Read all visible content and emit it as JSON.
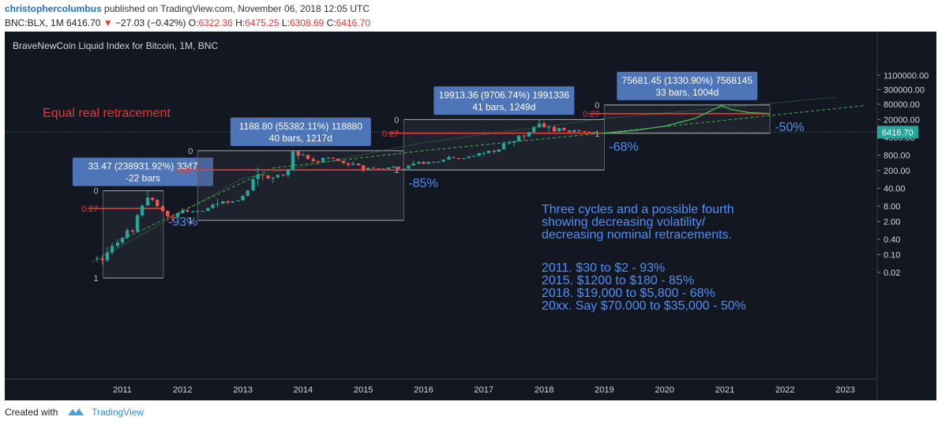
{
  "header": {
    "author": "christophercolumbus",
    "published_text": "published on TradingView.com, November 06, 2018 12:05 UTC",
    "symbol": "BNC:BLX, 1M",
    "last_price": "6416.70",
    "change": "−27.03 (−0.42%)",
    "open_label": "O:",
    "open_value": "6322.36",
    "high_label": "H:",
    "high_value": "6475.25",
    "low_label": "L:",
    "low_value": "6308.69",
    "close_label": "C:",
    "close_value": "6416.70"
  },
  "footer": {
    "created_with": "Created with",
    "brand": "TradingView"
  },
  "colors": {
    "background": "#131722",
    "up": "#26a69a",
    "down": "#ef5350",
    "red_line": "#e53935",
    "text_blue": "#4f8ff7",
    "box_fill": "#4e75b8",
    "grid": "#2a2e39",
    "green": "#4caf50"
  },
  "chart_data": {
    "type": "candlestick",
    "title": "BraveNewCoin Liquid Index for Bitcoin, 1M, BNC",
    "y_scale": "log",
    "x_tick_labels": [
      "2011",
      "2012",
      "2013",
      "2014",
      "2015",
      "2016",
      "2017",
      "2018",
      "2019",
      "2020",
      "2021",
      "2022",
      "2023"
    ],
    "y_tick_labels": [
      "1100000.00",
      "300000.00",
      "80000.00",
      "20000.00",
      "4000.00",
      "800.00",
      "200.00",
      "40.00",
      "8.00",
      "2.00",
      "0.40",
      "0.10",
      "0.02"
    ],
    "y_ticks": [
      1100000,
      300000,
      80000,
      20000,
      4000,
      800,
      200,
      40,
      8,
      2,
      0.4,
      0.1,
      0.02
    ],
    "price_label": "6416.70",
    "last_price": 6416.7,
    "candles": [
      {
        "t": 2010.58,
        "o": 0.07,
        "h": 0.09,
        "l": 0.05,
        "c": 0.07
      },
      {
        "t": 2010.67,
        "o": 0.07,
        "h": 0.1,
        "l": 0.04,
        "c": 0.06
      },
      {
        "t": 2010.75,
        "o": 0.06,
        "h": 0.2,
        "l": 0.05,
        "c": 0.12
      },
      {
        "t": 2010.83,
        "o": 0.12,
        "h": 0.3,
        "l": 0.1,
        "c": 0.22
      },
      {
        "t": 2010.92,
        "o": 0.22,
        "h": 0.4,
        "l": 0.17,
        "c": 0.3
      },
      {
        "t": 2011.0,
        "o": 0.3,
        "h": 0.5,
        "l": 0.25,
        "c": 0.45
      },
      {
        "t": 2011.08,
        "o": 0.45,
        "h": 1.1,
        "l": 0.4,
        "c": 0.9
      },
      {
        "t": 2011.17,
        "o": 0.9,
        "h": 0.95,
        "l": 0.7,
        "c": 0.8
      },
      {
        "t": 2011.25,
        "o": 0.8,
        "h": 4,
        "l": 0.7,
        "c": 3.5
      },
      {
        "t": 2011.33,
        "o": 3.5,
        "h": 9,
        "l": 3,
        "c": 8.5
      },
      {
        "t": 2011.42,
        "o": 8.5,
        "h": 31,
        "l": 8,
        "c": 17
      },
      {
        "t": 2011.5,
        "o": 17,
        "h": 18,
        "l": 12,
        "c": 14
      },
      {
        "t": 2011.58,
        "o": 14,
        "h": 15,
        "l": 7,
        "c": 8
      },
      {
        "t": 2011.67,
        "o": 8,
        "h": 9,
        "l": 4.5,
        "c": 5.2
      },
      {
        "t": 2011.75,
        "o": 5.2,
        "h": 5.5,
        "l": 2.2,
        "c": 3.2
      },
      {
        "t": 2011.83,
        "o": 3.2,
        "h": 3.6,
        "l": 2,
        "c": 3
      },
      {
        "t": 2011.92,
        "o": 3,
        "h": 4.5,
        "l": 2.8,
        "c": 4.2
      },
      {
        "t": 2012.0,
        "o": 4.2,
        "h": 7,
        "l": 4,
        "c": 5.5
      },
      {
        "t": 2012.08,
        "o": 5.5,
        "h": 6.2,
        "l": 4.3,
        "c": 4.9
      },
      {
        "t": 2012.17,
        "o": 4.9,
        "h": 5.5,
        "l": 4.6,
        "c": 4.9
      },
      {
        "t": 2012.25,
        "o": 4.9,
        "h": 5.3,
        "l": 4.7,
        "c": 5.1
      },
      {
        "t": 2012.33,
        "o": 5.1,
        "h": 5.3,
        "l": 4.9,
        "c": 5.2
      },
      {
        "t": 2012.42,
        "o": 5.2,
        "h": 6.8,
        "l": 5.1,
        "c": 6.7
      },
      {
        "t": 2012.5,
        "o": 6.7,
        "h": 9.5,
        "l": 6.5,
        "c": 9.4
      },
      {
        "t": 2012.58,
        "o": 9.4,
        "h": 16,
        "l": 7,
        "c": 10
      },
      {
        "t": 2012.67,
        "o": 10,
        "h": 12.5,
        "l": 9.8,
        "c": 12.4
      },
      {
        "t": 2012.75,
        "o": 12.4,
        "h": 13,
        "l": 9.6,
        "c": 11
      },
      {
        "t": 2012.83,
        "o": 11,
        "h": 12.6,
        "l": 10.5,
        "c": 12.5
      },
      {
        "t": 2012.92,
        "o": 12.5,
        "h": 13.7,
        "l": 12.1,
        "c": 13.5
      },
      {
        "t": 2013.0,
        "o": 13.5,
        "h": 21,
        "l": 13.2,
        "c": 20.4
      },
      {
        "t": 2013.08,
        "o": 20.4,
        "h": 35,
        "l": 19,
        "c": 33
      },
      {
        "t": 2013.17,
        "o": 33,
        "h": 95,
        "l": 31,
        "c": 93
      },
      {
        "t": 2013.25,
        "o": 93,
        "h": 266,
        "l": 50,
        "c": 140
      },
      {
        "t": 2013.33,
        "o": 140,
        "h": 140,
        "l": 80,
        "c": 129
      },
      {
        "t": 2013.42,
        "o": 129,
        "h": 130,
        "l": 95,
        "c": 97
      },
      {
        "t": 2013.5,
        "o": 97,
        "h": 110,
        "l": 65,
        "c": 106
      },
      {
        "t": 2013.58,
        "o": 106,
        "h": 140,
        "l": 102,
        "c": 135
      },
      {
        "t": 2013.67,
        "o": 135,
        "h": 145,
        "l": 118,
        "c": 133
      },
      {
        "t": 2013.75,
        "o": 133,
        "h": 215,
        "l": 105,
        "c": 210
      },
      {
        "t": 2013.83,
        "o": 210,
        "h": 1200,
        "l": 205,
        "c": 1130
      },
      {
        "t": 2013.92,
        "o": 1130,
        "h": 1180,
        "l": 520,
        "c": 770
      },
      {
        "t": 2014.0,
        "o": 770,
        "h": 1000,
        "l": 760,
        "c": 820
      },
      {
        "t": 2014.08,
        "o": 820,
        "h": 860,
        "l": 520,
        "c": 570
      },
      {
        "t": 2014.17,
        "o": 570,
        "h": 700,
        "l": 440,
        "c": 460
      },
      {
        "t": 2014.25,
        "o": 460,
        "h": 530,
        "l": 340,
        "c": 445
      },
      {
        "t": 2014.33,
        "o": 445,
        "h": 630,
        "l": 420,
        "c": 625
      },
      {
        "t": 2014.42,
        "o": 625,
        "h": 680,
        "l": 555,
        "c": 640
      },
      {
        "t": 2014.5,
        "o": 640,
        "h": 660,
        "l": 565,
        "c": 585
      },
      {
        "t": 2014.58,
        "o": 585,
        "h": 600,
        "l": 460,
        "c": 480
      },
      {
        "t": 2014.67,
        "o": 480,
        "h": 490,
        "l": 370,
        "c": 388
      },
      {
        "t": 2014.75,
        "o": 388,
        "h": 415,
        "l": 275,
        "c": 338
      },
      {
        "t": 2014.83,
        "o": 338,
        "h": 460,
        "l": 320,
        "c": 378
      },
      {
        "t": 2014.92,
        "o": 378,
        "h": 385,
        "l": 305,
        "c": 320
      },
      {
        "t": 2015.0,
        "o": 320,
        "h": 320,
        "l": 170,
        "c": 218
      },
      {
        "t": 2015.08,
        "o": 218,
        "h": 265,
        "l": 210,
        "c": 254
      },
      {
        "t": 2015.17,
        "o": 254,
        "h": 300,
        "l": 240,
        "c": 244
      },
      {
        "t": 2015.25,
        "o": 244,
        "h": 260,
        "l": 215,
        "c": 236
      },
      {
        "t": 2015.33,
        "o": 236,
        "h": 245,
        "l": 225,
        "c": 230
      },
      {
        "t": 2015.42,
        "o": 230,
        "h": 268,
        "l": 218,
        "c": 264
      },
      {
        "t": 2015.5,
        "o": 264,
        "h": 315,
        "l": 252,
        "c": 284
      },
      {
        "t": 2015.58,
        "o": 284,
        "h": 285,
        "l": 198,
        "c": 230
      },
      {
        "t": 2015.67,
        "o": 230,
        "h": 245,
        "l": 225,
        "c": 236
      },
      {
        "t": 2015.75,
        "o": 236,
        "h": 320,
        "l": 235,
        "c": 313
      },
      {
        "t": 2015.83,
        "o": 313,
        "h": 500,
        "l": 310,
        "c": 378
      },
      {
        "t": 2015.92,
        "o": 378,
        "h": 465,
        "l": 345,
        "c": 430
      },
      {
        "t": 2016.0,
        "o": 430,
        "h": 460,
        "l": 355,
        "c": 368
      },
      {
        "t": 2016.08,
        "o": 368,
        "h": 440,
        "l": 365,
        "c": 437
      },
      {
        "t": 2016.17,
        "o": 437,
        "h": 440,
        "l": 400,
        "c": 416
      },
      {
        "t": 2016.25,
        "o": 416,
        "h": 455,
        "l": 412,
        "c": 448
      },
      {
        "t": 2016.33,
        "o": 448,
        "h": 545,
        "l": 440,
        "c": 531
      },
      {
        "t": 2016.42,
        "o": 531,
        "h": 780,
        "l": 530,
        "c": 670
      },
      {
        "t": 2016.5,
        "o": 670,
        "h": 690,
        "l": 600,
        "c": 624
      },
      {
        "t": 2016.58,
        "o": 624,
        "h": 625,
        "l": 540,
        "c": 575
      },
      {
        "t": 2016.67,
        "o": 575,
        "h": 615,
        "l": 570,
        "c": 609
      },
      {
        "t": 2016.75,
        "o": 609,
        "h": 740,
        "l": 605,
        "c": 700
      },
      {
        "t": 2016.83,
        "o": 700,
        "h": 760,
        "l": 680,
        "c": 745
      },
      {
        "t": 2016.92,
        "o": 745,
        "h": 975,
        "l": 740,
        "c": 960
      },
      {
        "t": 2017.0,
        "o": 960,
        "h": 1150,
        "l": 750,
        "c": 965
      },
      {
        "t": 2017.08,
        "o": 965,
        "h": 1200,
        "l": 920,
        "c": 1190
      },
      {
        "t": 2017.17,
        "o": 1190,
        "h": 1300,
        "l": 900,
        "c": 1080
      },
      {
        "t": 2017.25,
        "o": 1080,
        "h": 1380,
        "l": 1060,
        "c": 1350
      },
      {
        "t": 2017.33,
        "o": 1350,
        "h": 2760,
        "l": 1340,
        "c": 2300
      },
      {
        "t": 2017.42,
        "o": 2300,
        "h": 2980,
        "l": 2100,
        "c": 2480
      },
      {
        "t": 2017.5,
        "o": 2480,
        "h": 2920,
        "l": 1830,
        "c": 2870
      },
      {
        "t": 2017.58,
        "o": 2870,
        "h": 4750,
        "l": 2680,
        "c": 4730
      },
      {
        "t": 2017.67,
        "o": 4730,
        "h": 4980,
        "l": 2980,
        "c": 4340
      },
      {
        "t": 2017.75,
        "o": 4340,
        "h": 6450,
        "l": 4160,
        "c": 6450
      },
      {
        "t": 2017.83,
        "o": 6450,
        "h": 11400,
        "l": 5600,
        "c": 10200
      },
      {
        "t": 2017.92,
        "o": 10200,
        "h": 19900,
        "l": 9700,
        "c": 14000
      },
      {
        "t": 2018.0,
        "o": 14000,
        "h": 17200,
        "l": 9400,
        "c": 10200
      },
      {
        "t": 2018.08,
        "o": 10200,
        "h": 11800,
        "l": 6000,
        "c": 10400
      },
      {
        "t": 2018.17,
        "o": 10400,
        "h": 11700,
        "l": 6500,
        "c": 6900
      },
      {
        "t": 2018.25,
        "o": 6900,
        "h": 9800,
        "l": 6450,
        "c": 9240
      },
      {
        "t": 2018.33,
        "o": 9240,
        "h": 9980,
        "l": 7050,
        "c": 7500
      },
      {
        "t": 2018.42,
        "o": 7500,
        "h": 7750,
        "l": 5800,
        "c": 6390
      },
      {
        "t": 2018.5,
        "o": 6390,
        "h": 8480,
        "l": 6300,
        "c": 7730
      },
      {
        "t": 2018.58,
        "o": 7730,
        "h": 7760,
        "l": 5880,
        "c": 7030
      },
      {
        "t": 2018.67,
        "o": 7030,
        "h": 7400,
        "l": 6150,
        "c": 6620
      },
      {
        "t": 2018.75,
        "o": 6620,
        "h": 6800,
        "l": 6200,
        "c": 6330
      },
      {
        "t": 2018.83,
        "o": 6322.36,
        "h": 6475.25,
        "l": 6308.69,
        "c": 6416.7
      }
    ],
    "cycle_boxes": [
      {
        "label_line1": "33.47 (238931.92%) 3347",
        "label_line2": "-22 bars",
        "top_level": "0",
        "fib_level": "0.27",
        "bottom_level": "1",
        "retracement": "-93%",
        "year_start": 2010.68,
        "year_end": 2011.68,
        "price_top": 32,
        "price_fib": 6.5,
        "price_bottom": 0.012
      },
      {
        "label_line1": "1188.80 (55382.11%) 118880",
        "label_line2": "40 bars, 1217d",
        "top_level": "0",
        "fib_level": "0.27",
        "bottom_level": "1",
        "retracement": "-85%",
        "year_start": 2012.25,
        "year_end": 2015.67,
        "price_top": 1200,
        "price_fib": 210,
        "price_bottom": 2.2
      },
      {
        "label_line1": "19913.36 (9706.74%) 1991336",
        "label_line2": "41 bars, 1249d",
        "top_level": "0",
        "fib_level": "0.27",
        "bottom_level": "1",
        "retracement": "-68%",
        "year_start": 2015.67,
        "year_end": 2019.0,
        "price_top": 20000,
        "price_fib": 5800,
        "price_bottom": 210
      },
      {
        "label_line1": "75681.45 (1330.90%) 7568145",
        "label_line2": "33 bars, 1004d",
        "top_level": "0",
        "fib_level": "0.27",
        "bottom_level": "1",
        "retracement": "-50%",
        "year_start": 2019.0,
        "year_end": 2021.75,
        "price_top": 75000,
        "price_fib": 34000,
        "price_bottom": 5800
      }
    ],
    "annotations": {
      "equal_retracement": "Equal real retracement",
      "cycles_text": [
        "Three cycles and a possible fourth",
        "showing decreasing volatility/",
        "decreasing nominal retracements."
      ],
      "cycle_list": [
        "2011.  $30 to $2 - 93%",
        "2015.  $1200 to $180 - 85%",
        "2018. $19,000 to $5,800 - 68%",
        "20xx. Say $70.000 to $35,000 - 50%"
      ]
    },
    "projection_path": [
      {
        "t": 2019.0,
        "p": 5800
      },
      {
        "t": 2019.5,
        "p": 7500
      },
      {
        "t": 2020.0,
        "p": 11000
      },
      {
        "t": 2020.5,
        "p": 22000
      },
      {
        "t": 2020.85,
        "p": 55000
      },
      {
        "t": 2020.95,
        "p": 70000
      },
      {
        "t": 2021.1,
        "p": 50000
      },
      {
        "t": 2021.4,
        "p": 38000
      },
      {
        "t": 2021.75,
        "p": 34000
      }
    ],
    "trend_dotted": [
      {
        "t": 2010.5,
        "p": 0.05
      },
      {
        "t": 2013.0,
        "p": 100
      },
      {
        "t": 2016.0,
        "p": 2500
      },
      {
        "t": 2019.0,
        "p": 22000
      },
      {
        "t": 2022.85,
        "p": 150000
      }
    ],
    "trend_dashed": [
      {
        "t": 2011.0,
        "p": 0.4
      },
      {
        "t": 2013.5,
        "p": 250
      },
      {
        "t": 2016.0,
        "p": 1200
      },
      {
        "t": 2019.0,
        "p": 6000
      },
      {
        "t": 2023.3,
        "p": 70000
      }
    ]
  }
}
